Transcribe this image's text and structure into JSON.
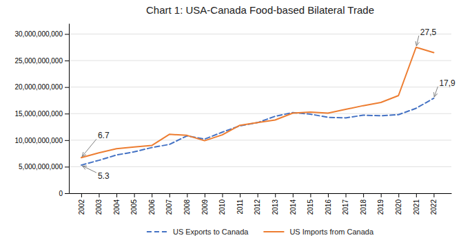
{
  "chart_data": {
    "type": "line",
    "title": "Chart 1: USA-Canada Food-based Bilateral Trade",
    "x": [
      2002,
      2003,
      2004,
      2005,
      2006,
      2007,
      2008,
      2009,
      2010,
      2011,
      2012,
      2013,
      2014,
      2015,
      2016,
      2017,
      2018,
      2019,
      2020,
      2021,
      2022
    ],
    "series": [
      {
        "name": "US Exports to Canada",
        "color": "#4472C4",
        "line_style": "dashed",
        "values": [
          5300000000,
          6200000000,
          7200000000,
          7800000000,
          8600000000,
          9200000000,
          10800000000,
          10200000000,
          11500000000,
          12700000000,
          13300000000,
          14500000000,
          15200000000,
          14900000000,
          14300000000,
          14200000000,
          14700000000,
          14600000000,
          14800000000,
          16000000000,
          17900000000
        ]
      },
      {
        "name": "US Imports from Canada",
        "color": "#ED7D31",
        "line_style": "solid",
        "values": [
          6700000000,
          7600000000,
          8400000000,
          8700000000,
          9000000000,
          11100000000,
          10900000000,
          9900000000,
          11000000000,
          12800000000,
          13300000000,
          13800000000,
          15100000000,
          15300000000,
          15100000000,
          15800000000,
          16500000000,
          17100000000,
          18400000000,
          27500000000,
          26500000000
        ]
      }
    ],
    "xlim": [
      2001.3,
      2023.0
    ],
    "xticks": [
      2002,
      2003,
      2004,
      2005,
      2006,
      2007,
      2008,
      2009,
      2010,
      2011,
      2012,
      2013,
      2014,
      2015,
      2016,
      2017,
      2018,
      2019,
      2020,
      2021,
      2022
    ],
    "ylim": [
      0,
      32000000000
    ],
    "yticks": [
      0,
      {
        "value": 5000000000,
        "label": "5,000,000,000"
      },
      {
        "value": 10000000000,
        "label": "10,000,000,000"
      },
      {
        "value": 15000000000,
        "label": "15,000,000,000"
      },
      {
        "value": 20000000000,
        "label": "20,000,000,000"
      },
      {
        "value": 25000000000,
        "label": "25,000,000,000"
      },
      {
        "value": 30000000000,
        "label": "30,000,000,000"
      }
    ],
    "grid": true,
    "legend": "bottom",
    "annotations": [
      {
        "text": "6.7",
        "x": 2002,
        "y": 6700000000
      },
      {
        "text": "5.3",
        "x": 2002,
        "y": 5300000000
      },
      {
        "text": "27,5",
        "x": 2021,
        "y": 27500000000
      },
      {
        "text": "17,9",
        "x": 2022,
        "y": 17900000000
      }
    ]
  }
}
